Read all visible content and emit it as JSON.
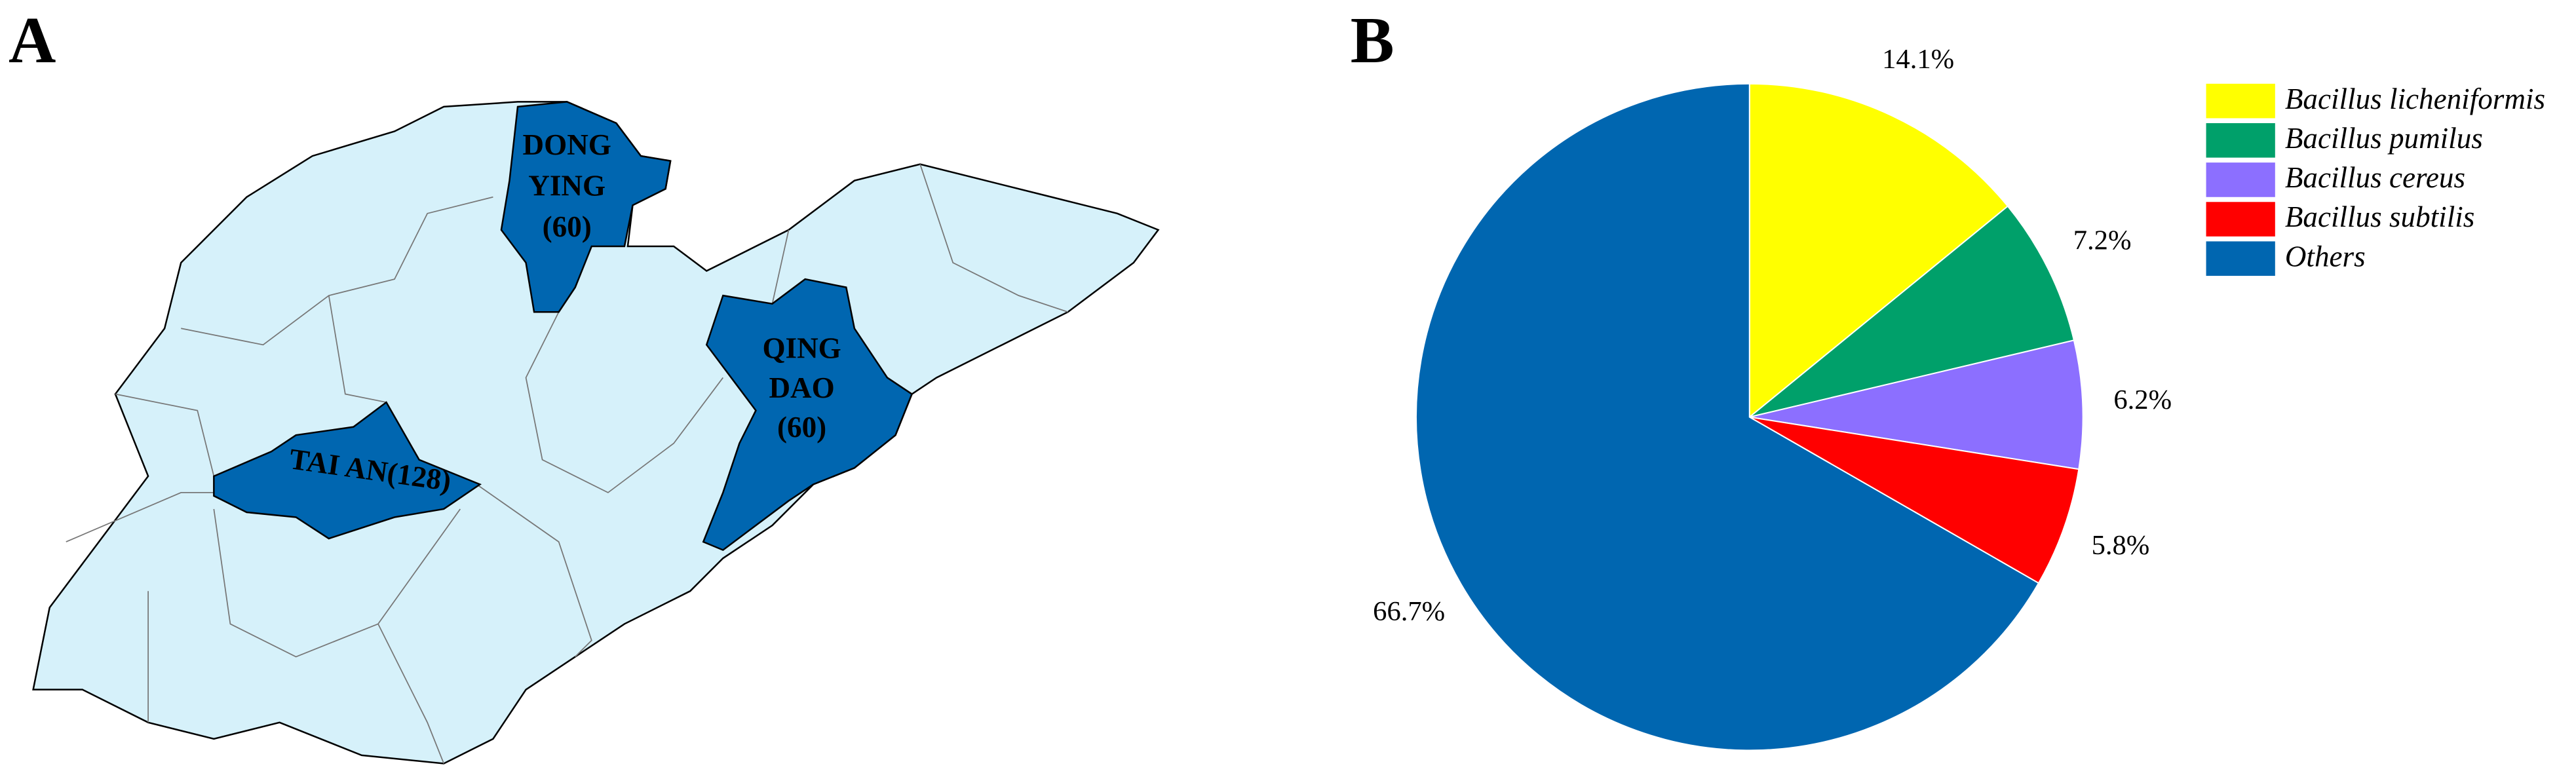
{
  "chart_data": [
    {
      "type": "map",
      "panel_label": "A",
      "regions": [
        {
          "label_lines": [
            "DONG",
            "YING",
            "(60)"
          ]
        },
        {
          "label_lines": [
            "QING",
            "DAO",
            "(60)"
          ]
        },
        {
          "label_lines": [
            "TAI AN(128)"
          ]
        }
      ]
    },
    {
      "type": "pie",
      "panel_label": "B",
      "categories": [
        "Bacillus licheniformis",
        "Bacillus pumilus",
        "Bacillus cereus",
        "Bacillus subtilis",
        "Others"
      ],
      "values": [
        14.1,
        7.2,
        6.2,
        5.8,
        66.7
      ],
      "value_labels": [
        "14.1%",
        "7.2%",
        "6.2%",
        "5.8%",
        "66.7%"
      ],
      "colors": [
        "#ffff00",
        "#00a06a",
        "#8c6fff",
        "#ff0000",
        "#0066b0"
      ],
      "legend": "right"
    }
  ]
}
